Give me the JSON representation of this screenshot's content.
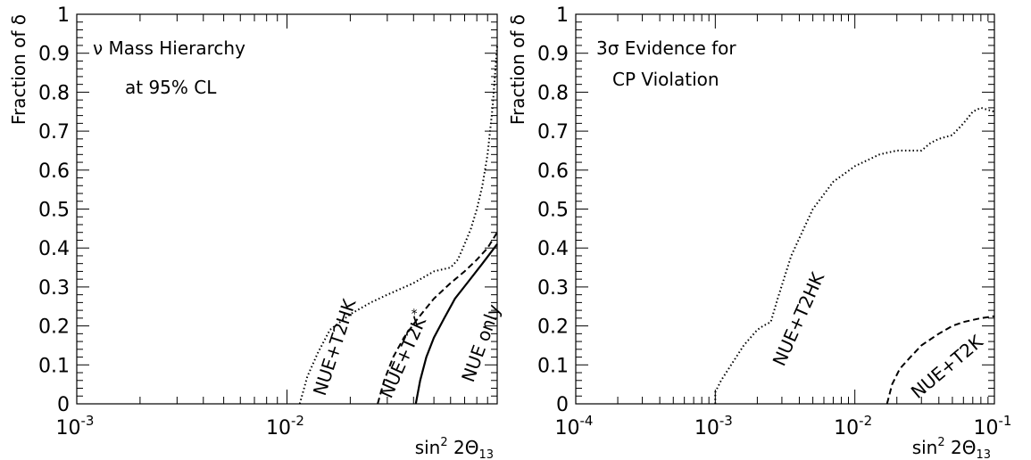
{
  "chart_data": [
    {
      "type": "line",
      "panel": "left",
      "ylabel": "Fraction of δ",
      "xlabel": {
        "base": "sin",
        "exp": "2",
        "rest": "2Θ",
        "sub": "13"
      },
      "annotation": [
        "ν Mass Hierarchy",
        "at 95% CL"
      ],
      "xscale": "log",
      "xlim": [
        0.001,
        0.1
      ],
      "ylim": [
        0,
        1
      ],
      "x_ticks": [
        {
          "value": 0.001,
          "base": "10",
          "exp": "-3"
        },
        {
          "value": 0.01,
          "base": "10",
          "exp": "-2"
        }
      ],
      "y_ticks": [
        "0",
        "0.1",
        "0.2",
        "0.3",
        "0.4",
        "0.5",
        "0.6",
        "0.7",
        "0.8",
        "0.9",
        "1"
      ],
      "series": [
        {
          "name": "NUE+T2HK",
          "style": "dotted",
          "points": [
            [
              0.0115,
              0
            ],
            [
              0.0125,
              0.07
            ],
            [
              0.014,
              0.13
            ],
            [
              0.016,
              0.19
            ],
            [
              0.02,
              0.23
            ],
            [
              0.025,
              0.26
            ],
            [
              0.03,
              0.28
            ],
            [
              0.04,
              0.31
            ],
            [
              0.05,
              0.34
            ],
            [
              0.06,
              0.35
            ],
            [
              0.065,
              0.37
            ],
            [
              0.07,
              0.41
            ],
            [
              0.075,
              0.45
            ],
            [
              0.08,
              0.5
            ],
            [
              0.085,
              0.56
            ],
            [
              0.09,
              0.64
            ],
            [
              0.095,
              0.76
            ],
            [
              0.1,
              0.92
            ]
          ]
        },
        {
          "name": "NUE+T2K",
          "label_sup": "*",
          "style": "dashed",
          "points": [
            [
              0.027,
              0
            ],
            [
              0.029,
              0.06
            ],
            [
              0.032,
              0.12
            ],
            [
              0.036,
              0.17
            ],
            [
              0.042,
              0.22
            ],
            [
              0.05,
              0.27
            ],
            [
              0.06,
              0.31
            ],
            [
              0.07,
              0.34
            ],
            [
              0.08,
              0.37
            ],
            [
              0.09,
              0.4
            ],
            [
              0.1,
              0.44
            ]
          ]
        },
        {
          "name": "NUE only",
          "style": "solid",
          "points": [
            [
              0.041,
              0
            ],
            [
              0.043,
              0.06
            ],
            [
              0.046,
              0.12
            ],
            [
              0.05,
              0.17
            ],
            [
              0.056,
              0.22
            ],
            [
              0.063,
              0.27
            ],
            [
              0.072,
              0.31
            ],
            [
              0.085,
              0.36
            ],
            [
              0.1,
              0.41
            ]
          ]
        }
      ]
    },
    {
      "type": "line",
      "panel": "right",
      "ylabel": "Fraction of δ",
      "xlabel": {
        "base": "sin",
        "exp": "2",
        "rest": "2Θ",
        "sub": "13"
      },
      "annotation": [
        "3σ Evidence for",
        "CP Violation"
      ],
      "xscale": "log",
      "xlim": [
        0.0001,
        0.1
      ],
      "ylim": [
        0,
        1
      ],
      "x_ticks": [
        {
          "value": 0.0001,
          "base": "10",
          "exp": "-4"
        },
        {
          "value": 0.001,
          "base": "10",
          "exp": "-3"
        },
        {
          "value": 0.01,
          "base": "10",
          "exp": "-2"
        },
        {
          "value": 0.1,
          "base": "10",
          "exp": "-1"
        }
      ],
      "y_ticks": [
        "0",
        "0.1",
        "0.2",
        "0.3",
        "0.4",
        "0.5",
        "0.6",
        "0.7",
        "0.8",
        "0.9",
        "1"
      ],
      "series": [
        {
          "name": "NUE+T2HK",
          "style": "dotted",
          "points": [
            [
              0.001,
              0
            ],
            [
              0.001,
              0.03
            ],
            [
              0.0011,
              0.06
            ],
            [
              0.0013,
              0.1
            ],
            [
              0.0016,
              0.15
            ],
            [
              0.002,
              0.19
            ],
            [
              0.0022,
              0.2
            ],
            [
              0.0025,
              0.21
            ],
            [
              0.0028,
              0.27
            ],
            [
              0.0035,
              0.38
            ],
            [
              0.005,
              0.5
            ],
            [
              0.007,
              0.57
            ],
            [
              0.01,
              0.61
            ],
            [
              0.015,
              0.64
            ],
            [
              0.02,
              0.65
            ],
            [
              0.03,
              0.65
            ],
            [
              0.035,
              0.67
            ],
            [
              0.04,
              0.68
            ],
            [
              0.05,
              0.69
            ],
            [
              0.06,
              0.72
            ],
            [
              0.07,
              0.75
            ],
            [
              0.08,
              0.76
            ],
            [
              0.1,
              0.75
            ]
          ]
        },
        {
          "name": "NUE+T2K",
          "style": "dashed",
          "points": [
            [
              0.017,
              0
            ],
            [
              0.0185,
              0.05
            ],
            [
              0.021,
              0.09
            ],
            [
              0.025,
              0.12
            ],
            [
              0.03,
              0.15
            ],
            [
              0.04,
              0.18
            ],
            [
              0.05,
              0.2
            ],
            [
              0.06,
              0.21
            ],
            [
              0.08,
              0.22
            ],
            [
              0.1,
              0.225
            ]
          ]
        }
      ]
    }
  ]
}
